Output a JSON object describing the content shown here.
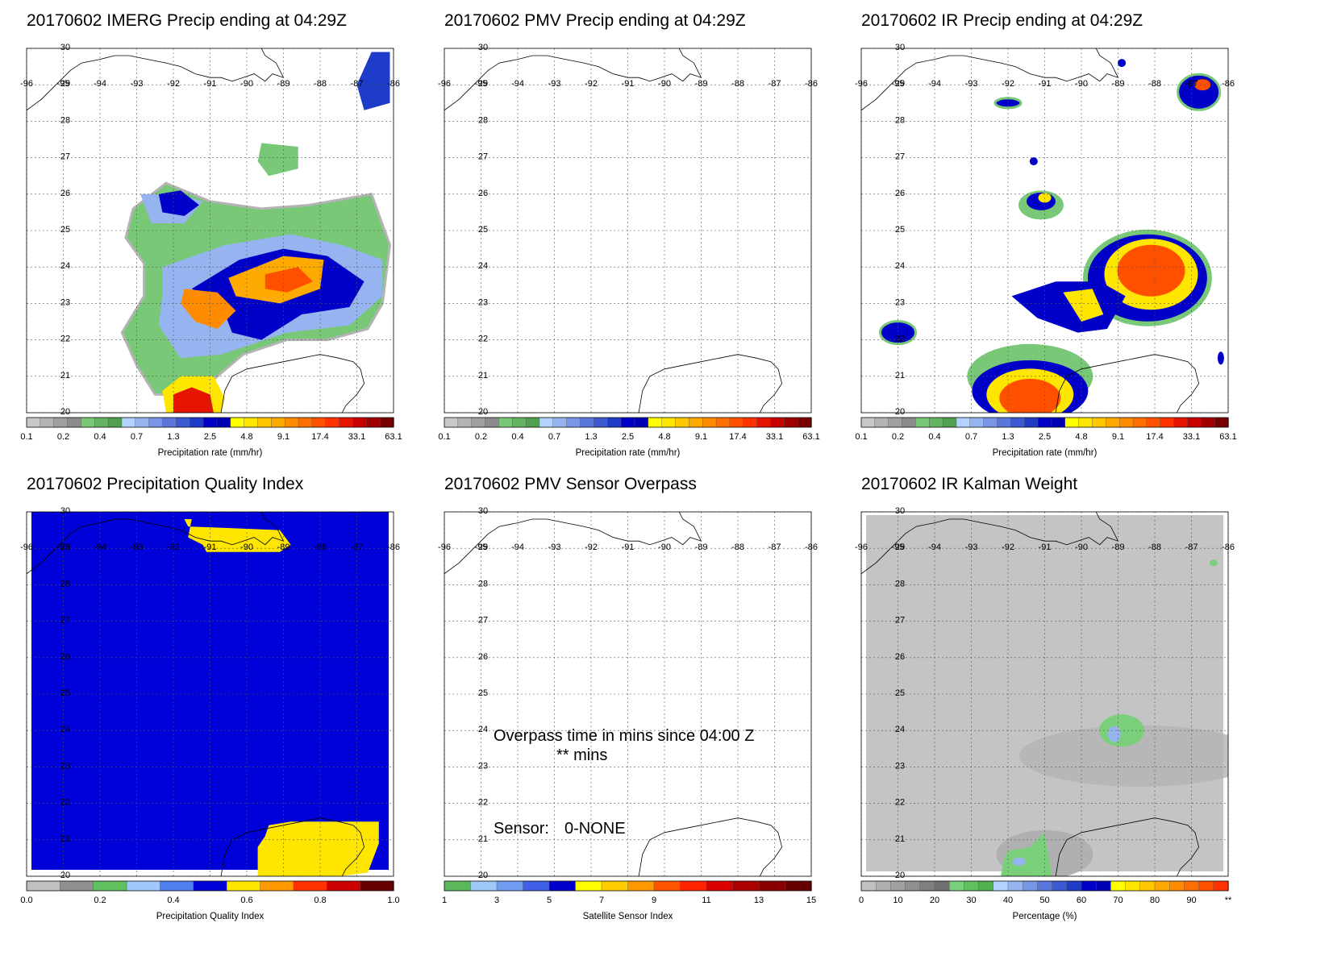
{
  "figure": {
    "panels": [
      {
        "id": "imerg-precip",
        "title": "20170602 IMERG Precip ending at 04:29Z",
        "colorbar": {
          "type": "precip",
          "label": "Precipitation rate (mm/hr)",
          "tick_labels": [
            "0.1",
            "0.2",
            "0.4",
            "0.7",
            "1.3",
            "2.5",
            "4.8",
            "9.1",
            "17.4",
            "33.1",
            "63.1"
          ]
        }
      },
      {
        "id": "pmv-precip",
        "title": "20170602 PMV Precip ending at 04:29Z",
        "colorbar": {
          "type": "precip",
          "label": "Precipitation rate (mm/hr)",
          "tick_labels": [
            "0.1",
            "0.2",
            "0.4",
            "0.7",
            "1.3",
            "2.5",
            "4.8",
            "9.1",
            "17.4",
            "33.1",
            "63.1"
          ]
        }
      },
      {
        "id": "ir-precip",
        "title": "20170602 IR Precip ending at 04:29Z",
        "colorbar": {
          "type": "precip",
          "label": "Precipitation rate (mm/hr)",
          "tick_labels": [
            "0.1",
            "0.2",
            "0.4",
            "0.7",
            "1.3",
            "2.5",
            "4.8",
            "9.1",
            "17.4",
            "33.1",
            "63.1"
          ]
        }
      },
      {
        "id": "quality-index",
        "title": "20170602 Precipitation Quality Index",
        "colorbar": {
          "type": "quality",
          "label": "Precipitation Quality Index",
          "tick_labels": [
            "0.0",
            "0.2",
            "0.4",
            "0.6",
            "0.8",
            "1.0"
          ]
        }
      },
      {
        "id": "pmv-overpass",
        "title": "20170602 PMV Sensor Overpass",
        "overpass_text": "Overpass time in mins since 04:00 Z",
        "overpass_value": "** mins",
        "sensor_label": "Sensor:",
        "sensor_value": "0-NONE",
        "colorbar": {
          "type": "sensor",
          "label": "Satellite Sensor Index",
          "tick_labels": [
            "1",
            "3",
            "5",
            "7",
            "9",
            "11",
            "13",
            "15"
          ]
        }
      },
      {
        "id": "ir-kalman",
        "title": "20170602 IR Kalman Weight",
        "colorbar": {
          "type": "percent",
          "label": "Percentage (%)",
          "tick_labels": [
            "0",
            "10",
            "20",
            "30",
            "40",
            "50",
            "60",
            "70",
            "80",
            "90",
            "**"
          ]
        }
      }
    ],
    "map_axes": {
      "lon_ticks": [
        "-96",
        "-95",
        "-94",
        "-93",
        "-92",
        "-91",
        "-90",
        "-89",
        "-88",
        "-87",
        "-86"
      ],
      "lat_ticks": [
        "20",
        "21",
        "22",
        "23",
        "24",
        "25",
        "26",
        "27",
        "28",
        "29",
        "30"
      ],
      "lon_range": [
        -96,
        -86
      ],
      "lat_range": [
        20,
        30
      ]
    },
    "colors": {
      "precip_scale": [
        "#c8c8c8",
        "#b4b4b4",
        "#a0a0a0",
        "#8c8c8c",
        "#78c878",
        "#64b464",
        "#50a050",
        "#b4d2ff",
        "#96b4f0",
        "#7896e6",
        "#5a78dc",
        "#3c5ad2",
        "#1e3cc8",
        "#0000c8",
        "#0000b4",
        "#ffff00",
        "#ffe600",
        "#ffc800",
        "#ffaa00",
        "#ff8c00",
        "#ff6e00",
        "#ff5000",
        "#ff3200",
        "#e61400",
        "#c80000",
        "#a00000",
        "#780000"
      ],
      "quality_scale": [
        "#c0c0c0",
        "#909090",
        "#60c060",
        "#a0c8ff",
        "#5080f0",
        "#0000d8",
        "#ffe600",
        "#ff9900",
        "#ff3300",
        "#cc0000",
        "#660000"
      ],
      "sensor_scale": [
        "#5cb85c",
        "#9ec8f5",
        "#6f9cf0",
        "#4060e8",
        "#0000cd",
        "#ffff00",
        "#ffcc00",
        "#ff9900",
        "#ff5500",
        "#ff2200",
        "#dd0000",
        "#aa0000",
        "#880000",
        "#660000"
      ],
      "percent_scale": [
        "#c0c0c0",
        "#b0b0b0",
        "#a0a0a0",
        "#909090",
        "#808080",
        "#707070",
        "#7ad07a",
        "#60c060",
        "#50b050",
        "#b4d2ff",
        "#96b4f0",
        "#7896e6",
        "#5a78dc",
        "#3c5ad2",
        "#1e3cc8",
        "#0000c8",
        "#0000b4",
        "#ffff00",
        "#ffe600",
        "#ffc800",
        "#ffaa00",
        "#ff8c00",
        "#ff6e00",
        "#ff5000",
        "#ff3200"
      ],
      "map_background_kalman": "#c4c4c4"
    }
  }
}
